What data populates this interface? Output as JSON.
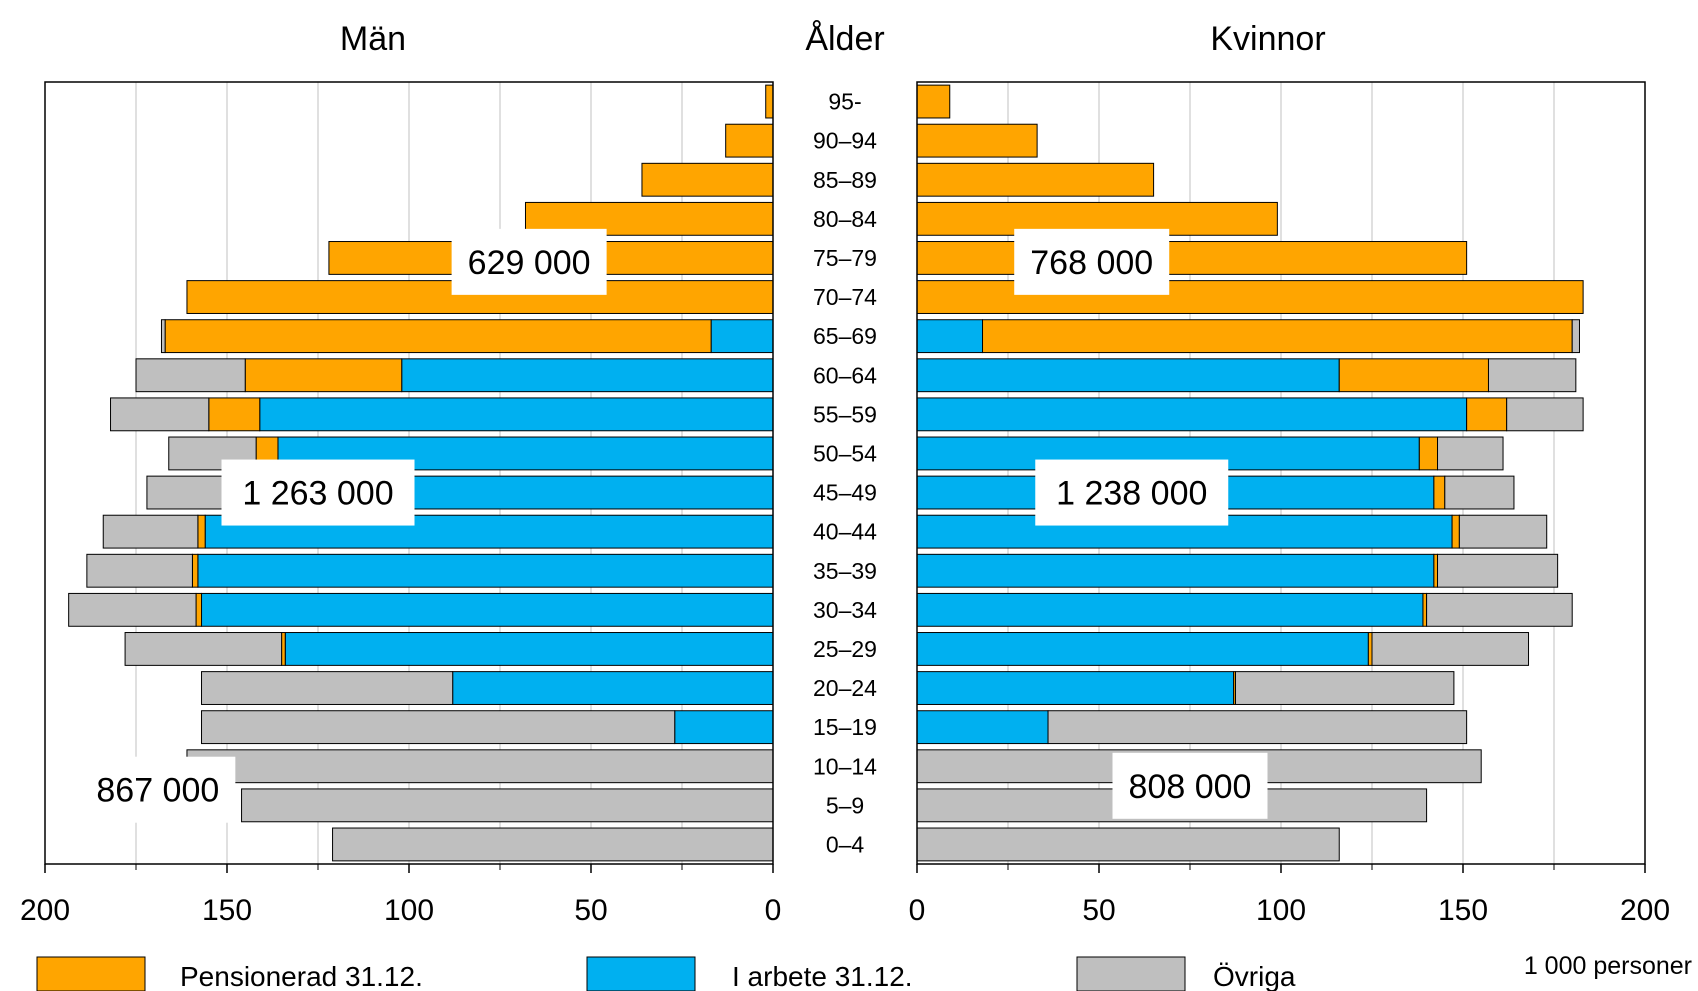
{
  "chart_data": {
    "type": "bar",
    "subtype": "population-pyramid",
    "left_title": "Män",
    "center_title": "Ålder",
    "right_title": "Kvinnor",
    "unit_label": "1 000 personer",
    "xlim": [
      0,
      200
    ],
    "x_ticks": [
      "200",
      "150",
      "100",
      "50",
      "0",
      "0",
      "50",
      "100",
      "150",
      "200"
    ],
    "grid": true,
    "stacking_order": [
      "I arbete 31.12.",
      "Pensionerad 31.12.",
      "Övriga"
    ],
    "categories": [
      "95-",
      "90–94",
      "85–89",
      "80–84",
      "75–79",
      "70–74",
      "65–69",
      "60–64",
      "55–59",
      "50–54",
      "45–49",
      "40–44",
      "35–39",
      "30–34",
      "25–29",
      "20–24",
      "15–19",
      "10–14",
      "5–9",
      "0–4"
    ],
    "series": [
      {
        "name": "Pensionerad 31.12.",
        "color": "#FFA500"
      },
      {
        "name": "I arbete 31.12.",
        "color": "#00B0F0"
      },
      {
        "name": "Övriga",
        "color": "#BFBFBF"
      }
    ],
    "men": {
      "I arbete 31.12.": [
        0,
        0,
        0,
        0,
        0,
        0,
        17,
        102,
        141,
        136,
        145,
        156,
        158,
        157,
        134,
        88,
        27,
        0,
        0,
        0
      ],
      "Pensionerad 31.12.": [
        2,
        13,
        36,
        68,
        122,
        161,
        150,
        43,
        14,
        6,
        4,
        2,
        1.5,
        1.5,
        1,
        0,
        0,
        0,
        0,
        0
      ],
      "Övriga": [
        0,
        0,
        0,
        0,
        0,
        0,
        1,
        30,
        27,
        24,
        23,
        26,
        29,
        35,
        43,
        69,
        130,
        161,
        146,
        121
      ]
    },
    "women": {
      "I arbete 31.12.": [
        0,
        0,
        0,
        0,
        0,
        0,
        18,
        116,
        151,
        138,
        142,
        147,
        142,
        139,
        124,
        87,
        36,
        0,
        0,
        0
      ],
      "Pensionerad 31.12.": [
        9,
        33,
        65,
        99,
        151,
        183,
        162,
        41,
        11,
        5,
        3,
        2,
        1,
        1,
        1,
        0.5,
        0,
        0,
        0,
        0
      ],
      "Övriga": [
        0,
        0,
        0,
        0,
        0,
        0,
        2,
        24,
        21,
        18,
        19,
        24,
        33,
        40,
        43,
        60,
        115,
        155,
        140,
        116
      ]
    },
    "annotations": {
      "men_pensioners": "629 000",
      "men_working": "1 263 000",
      "men_other": "867 000",
      "women_pensioners": "768 000",
      "women_working": "1 238 000",
      "women_other": "808 000"
    },
    "legend": [
      {
        "label": "Pensionerad 31.12.",
        "color": "#FFA500"
      },
      {
        "label": "I arbete 31.12.",
        "color": "#00B0F0"
      },
      {
        "label": "Övriga",
        "color": "#BFBFBF"
      }
    ],
    "legend_position": "bottom"
  }
}
